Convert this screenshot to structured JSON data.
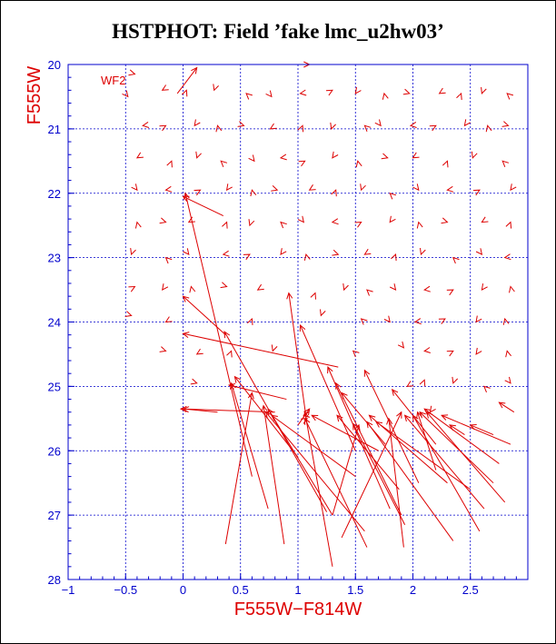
{
  "title": "HSTPHOT: Field ’fake lmc_u2hw03’",
  "chart_data": {
    "type": "scatter",
    "title": "HSTPHOT: Field ’fake lmc_u2hw03’",
    "xlabel": "F555W−F814W",
    "ylabel": "F555W",
    "xlim": [
      -1,
      3
    ],
    "ylim": [
      28,
      20
    ],
    "y_inverted": true,
    "grid": true,
    "annotation": "WF2",
    "x_ticks": [
      "−1",
      "−0.5",
      "0",
      "0.5",
      "1",
      "1.5",
      "2",
      "2.5"
    ],
    "x_tick_values": [
      -1,
      -0.5,
      0,
      0.5,
      1,
      1.5,
      2,
      2.5
    ],
    "y_ticks": [
      "20",
      "21",
      "22",
      "23",
      "24",
      "25",
      "26",
      "27",
      "28"
    ],
    "y_tick_values": [
      20,
      21,
      22,
      23,
      24,
      25,
      26,
      27,
      28
    ],
    "colors": {
      "frame": "#0000cc",
      "data": "#dd0000",
      "text": "#000000"
    },
    "arrows": [
      {
        "x1": -0.05,
        "y1": 20.45,
        "x2": 0.12,
        "y2": 20.05
      },
      {
        "x1": 1.01,
        "y1": 20.0,
        "x2": 1.1,
        "y2": 20.0
      },
      {
        "x1": 0.35,
        "y1": 22.35,
        "x2": 0.0,
        "y2": 22.05
      },
      {
        "x1": 0.37,
        "y1": 24.2,
        "x2": 0.0,
        "y2": 23.6
      },
      {
        "x1": 0.3,
        "y1": 25.4,
        "x2": 0.0,
        "y2": 25.35
      },
      {
        "x1": 1.35,
        "y1": 24.7,
        "x2": 0.0,
        "y2": 24.18
      },
      {
        "x1": 0.9,
        "y1": 25.2,
        "x2": 0.4,
        "y2": 24.98
      },
      {
        "x1": 0.6,
        "y1": 26.4,
        "x2": 0.02,
        "y2": 22.0
      },
      {
        "x1": 0.8,
        "y1": 25.4,
        "x2": -0.02,
        "y2": 25.35
      },
      {
        "x1": 1.25,
        "y1": 26.95,
        "x2": 0.36,
        "y2": 24.15
      },
      {
        "x1": 1.0,
        "y1": 26.1,
        "x2": 0.45,
        "y2": 24.85
      },
      {
        "x1": 0.37,
        "y1": 27.45,
        "x2": 0.6,
        "y2": 25.1
      },
      {
        "x1": 0.74,
        "y1": 26.9,
        "x2": 0.42,
        "y2": 24.95
      },
      {
        "x1": 0.88,
        "y1": 27.45,
        "x2": 0.7,
        "y2": 25.3
      },
      {
        "x1": 1.08,
        "y1": 25.6,
        "x2": 0.92,
        "y2": 23.55
      },
      {
        "x1": 1.3,
        "y1": 27.8,
        "x2": 1.06,
        "y2": 25.4
      },
      {
        "x1": 1.5,
        "y1": 26.0,
        "x2": 1.02,
        "y2": 24.05
      },
      {
        "x1": 1.3,
        "y1": 27.0,
        "x2": 0.74,
        "y2": 25.35
      },
      {
        "x1": 1.5,
        "y1": 26.4,
        "x2": 0.77,
        "y2": 25.45
      },
      {
        "x1": 1.58,
        "y1": 27.25,
        "x2": 0.72,
        "y2": 25.4
      },
      {
        "x1": 1.6,
        "y1": 27.5,
        "x2": 1.06,
        "y2": 25.5
      },
      {
        "x1": 1.0,
        "y1": 25.6,
        "x2": 1.1,
        "y2": 25.35
      },
      {
        "x1": 1.8,
        "y1": 26.9,
        "x2": 1.26,
        "y2": 24.7
      },
      {
        "x1": 1.9,
        "y1": 27.0,
        "x2": 1.33,
        "y2": 24.95
      },
      {
        "x1": 1.7,
        "y1": 26.0,
        "x2": 1.12,
        "y2": 25.45
      },
      {
        "x1": 1.88,
        "y1": 26.6,
        "x2": 1.34,
        "y2": 25.45
      },
      {
        "x1": 1.76,
        "y1": 25.9,
        "x2": 1.38,
        "y2": 25.1
      },
      {
        "x1": 1.3,
        "y1": 27.0,
        "x2": 1.53,
        "y2": 25.6
      },
      {
        "x1": 1.38,
        "y1": 27.35,
        "x2": 1.9,
        "y2": 25.4
      },
      {
        "x1": 1.93,
        "y1": 27.15,
        "x2": 1.48,
        "y2": 25.58
      },
      {
        "x1": 2.3,
        "y1": 26.5,
        "x2": 1.62,
        "y2": 25.45
      },
      {
        "x1": 1.92,
        "y1": 27.5,
        "x2": 1.79,
        "y2": 25.5
      },
      {
        "x1": 2.05,
        "y1": 26.5,
        "x2": 1.58,
        "y2": 24.75
      },
      {
        "x1": 2.2,
        "y1": 25.9,
        "x2": 1.82,
        "y2": 25.05
      },
      {
        "x1": 2.35,
        "y1": 27.4,
        "x2": 1.6,
        "y2": 25.55
      },
      {
        "x1": 2.2,
        "y1": 26.3,
        "x2": 2.04,
        "y2": 25.4
      },
      {
        "x1": 2.5,
        "y1": 26.6,
        "x2": 1.68,
        "y2": 25.55
      },
      {
        "x1": 2.8,
        "y1": 26.8,
        "x2": 2.12,
        "y2": 25.4
      },
      {
        "x1": 2.62,
        "y1": 26.9,
        "x2": 1.93,
        "y2": 25.45
      },
      {
        "x1": 2.7,
        "y1": 26.5,
        "x2": 2.06,
        "y2": 25.4
      },
      {
        "x1": 2.85,
        "y1": 25.9,
        "x2": 2.25,
        "y2": 25.45
      },
      {
        "x1": 2.75,
        "y1": 26.2,
        "x2": 2.1,
        "y2": 25.35
      },
      {
        "x1": 2.45,
        "y1": 25.75,
        "x2": 2.32,
        "y2": 25.6
      },
      {
        "x1": 2.58,
        "y1": 27.25,
        "x2": 2.0,
        "y2": 25.45
      },
      {
        "x1": 2.88,
        "y1": 25.4,
        "x2": 2.75,
        "y2": 25.25
      },
      {
        "x1": 2.7,
        "y1": 25.75,
        "x2": 2.5,
        "y2": 25.6
      }
    ],
    "markers": [
      {
        "x": -0.42,
        "y": 20.15
      },
      {
        "x": -0.18,
        "y": 20.4
      },
      {
        "x": 0.03,
        "y": 20.4
      },
      {
        "x": 0.27,
        "y": 20.4
      },
      {
        "x": 0.55,
        "y": 20.45
      },
      {
        "x": 0.77,
        "y": 20.5
      },
      {
        "x": 1.02,
        "y": 20.45
      },
      {
        "x": 1.3,
        "y": 20.4
      },
      {
        "x": 1.5,
        "y": 20.45
      },
      {
        "x": 1.75,
        "y": 20.45
      },
      {
        "x": 1.97,
        "y": 20.45
      },
      {
        "x": 2.23,
        "y": 20.45
      },
      {
        "x": 2.42,
        "y": 20.45
      },
      {
        "x": 2.6,
        "y": 20.45
      },
      {
        "x": 2.82,
        "y": 20.45
      },
      {
        "x": -0.48,
        "y": 20.5
      },
      {
        "x": -0.35,
        "y": 20.95
      },
      {
        "x": -0.15,
        "y": 20.95
      },
      {
        "x": 0.1,
        "y": 20.95
      },
      {
        "x": 0.3,
        "y": 20.95
      },
      {
        "x": 0.53,
        "y": 20.95
      },
      {
        "x": 0.76,
        "y": 21.0
      },
      {
        "x": 1.04,
        "y": 20.95
      },
      {
        "x": 1.29,
        "y": 21.0
      },
      {
        "x": 1.58,
        "y": 20.95
      },
      {
        "x": 1.72,
        "y": 20.95
      },
      {
        "x": 1.98,
        "y": 20.95
      },
      {
        "x": 2.2,
        "y": 20.95
      },
      {
        "x": 2.45,
        "y": 20.95
      },
      {
        "x": 2.65,
        "y": 20.95
      },
      {
        "x": 2.83,
        "y": 20.95
      },
      {
        "x": -0.4,
        "y": 21.45
      },
      {
        "x": -0.1,
        "y": 21.5
      },
      {
        "x": 0.12,
        "y": 21.45
      },
      {
        "x": 0.33,
        "y": 21.5
      },
      {
        "x": 0.62,
        "y": 21.5
      },
      {
        "x": 0.85,
        "y": 21.45
      },
      {
        "x": 1.06,
        "y": 21.5
      },
      {
        "x": 1.3,
        "y": 21.45
      },
      {
        "x": 1.52,
        "y": 21.5
      },
      {
        "x": 1.78,
        "y": 21.45
      },
      {
        "x": 2.0,
        "y": 21.45
      },
      {
        "x": 2.3,
        "y": 21.5
      },
      {
        "x": 2.52,
        "y": 21.45
      },
      {
        "x": 2.78,
        "y": 21.5
      },
      {
        "x": -0.4,
        "y": 21.95
      },
      {
        "x": -0.15,
        "y": 21.95
      },
      {
        "x": 0.15,
        "y": 21.95
      },
      {
        "x": 0.38,
        "y": 21.95
      },
      {
        "x": 0.6,
        "y": 21.95
      },
      {
        "x": 0.82,
        "y": 21.95
      },
      {
        "x": 1.1,
        "y": 21.95
      },
      {
        "x": 1.33,
        "y": 21.95
      },
      {
        "x": 1.55,
        "y": 21.95
      },
      {
        "x": 1.8,
        "y": 22.0
      },
      {
        "x": 2.05,
        "y": 21.95
      },
      {
        "x": 2.3,
        "y": 21.95
      },
      {
        "x": 2.58,
        "y": 21.95
      },
      {
        "x": 2.85,
        "y": 21.95
      },
      {
        "x": -0.4,
        "y": 22.45
      },
      {
        "x": -0.15,
        "y": 22.45
      },
      {
        "x": 0.05,
        "y": 22.45
      },
      {
        "x": 0.38,
        "y": 22.45
      },
      {
        "x": 0.58,
        "y": 22.5
      },
      {
        "x": 0.85,
        "y": 22.45
      },
      {
        "x": 1.05,
        "y": 22.45
      },
      {
        "x": 1.3,
        "y": 22.45
      },
      {
        "x": 1.55,
        "y": 22.45
      },
      {
        "x": 1.8,
        "y": 22.45
      },
      {
        "x": 2.05,
        "y": 22.45
      },
      {
        "x": 2.3,
        "y": 22.45
      },
      {
        "x": 2.6,
        "y": 22.45
      },
      {
        "x": 2.85,
        "y": 22.45
      },
      {
        "x": -0.45,
        "y": 22.95
      },
      {
        "x": -0.15,
        "y": 23.0
      },
      {
        "x": 0.05,
        "y": 22.95
      },
      {
        "x": 0.35,
        "y": 22.95
      },
      {
        "x": 0.58,
        "y": 22.95
      },
      {
        "x": 0.85,
        "y": 22.95
      },
      {
        "x": 1.07,
        "y": 22.95
      },
      {
        "x": 1.35,
        "y": 22.95
      },
      {
        "x": 1.58,
        "y": 22.95
      },
      {
        "x": 1.85,
        "y": 22.95
      },
      {
        "x": 2.07,
        "y": 22.95
      },
      {
        "x": 2.35,
        "y": 23.0
      },
      {
        "x": 2.6,
        "y": 22.95
      },
      {
        "x": 2.8,
        "y": 23.0
      },
      {
        "x": -0.42,
        "y": 23.45
      },
      {
        "x": -0.18,
        "y": 23.5
      },
      {
        "x": 0.07,
        "y": 23.45
      },
      {
        "x": 0.38,
        "y": 23.45
      },
      {
        "x": 0.65,
        "y": 23.5
      },
      {
        "x": 1.15,
        "y": 23.55
      },
      {
        "x": 1.4,
        "y": 23.5
      },
      {
        "x": 1.6,
        "y": 23.5
      },
      {
        "x": 1.85,
        "y": 23.5
      },
      {
        "x": 2.1,
        "y": 23.5
      },
      {
        "x": 2.35,
        "y": 23.5
      },
      {
        "x": 2.6,
        "y": 23.5
      },
      {
        "x": 2.85,
        "y": 23.45
      },
      {
        "x": -0.45,
        "y": 23.9
      },
      {
        "x": -0.15,
        "y": 24.0
      },
      {
        "x": 0.6,
        "y": 23.95
      },
      {
        "x": 1.2,
        "y": 23.9
      },
      {
        "x": 1.55,
        "y": 23.95
      },
      {
        "x": 1.8,
        "y": 24.0
      },
      {
        "x": 2.02,
        "y": 24.0
      },
      {
        "x": 2.28,
        "y": 23.95
      },
      {
        "x": 2.55,
        "y": 24.0
      },
      {
        "x": 2.8,
        "y": 23.95
      },
      {
        "x": -0.15,
        "y": 24.45
      },
      {
        "x": 0.12,
        "y": 24.5
      },
      {
        "x": 0.42,
        "y": 24.45
      },
      {
        "x": 0.78,
        "y": 24.45
      },
      {
        "x": 1.48,
        "y": 24.45
      },
      {
        "x": 1.92,
        "y": 24.4
      },
      {
        "x": 2.1,
        "y": 24.45
      },
      {
        "x": 2.35,
        "y": 24.45
      },
      {
        "x": 2.55,
        "y": 24.5
      },
      {
        "x": 2.82,
        "y": 24.45
      },
      {
        "x": 0.12,
        "y": 24.95
      },
      {
        "x": 1.95,
        "y": 25.0
      },
      {
        "x": 2.1,
        "y": 24.9
      },
      {
        "x": 2.35,
        "y": 24.95
      },
      {
        "x": 2.62,
        "y": 25.0
      },
      {
        "x": 2.85,
        "y": 24.95
      },
      {
        "x": 1.05,
        "y": 25.45
      },
      {
        "x": 1.08,
        "y": 25.5
      },
      {
        "x": 2.15,
        "y": 25.4
      }
    ]
  }
}
